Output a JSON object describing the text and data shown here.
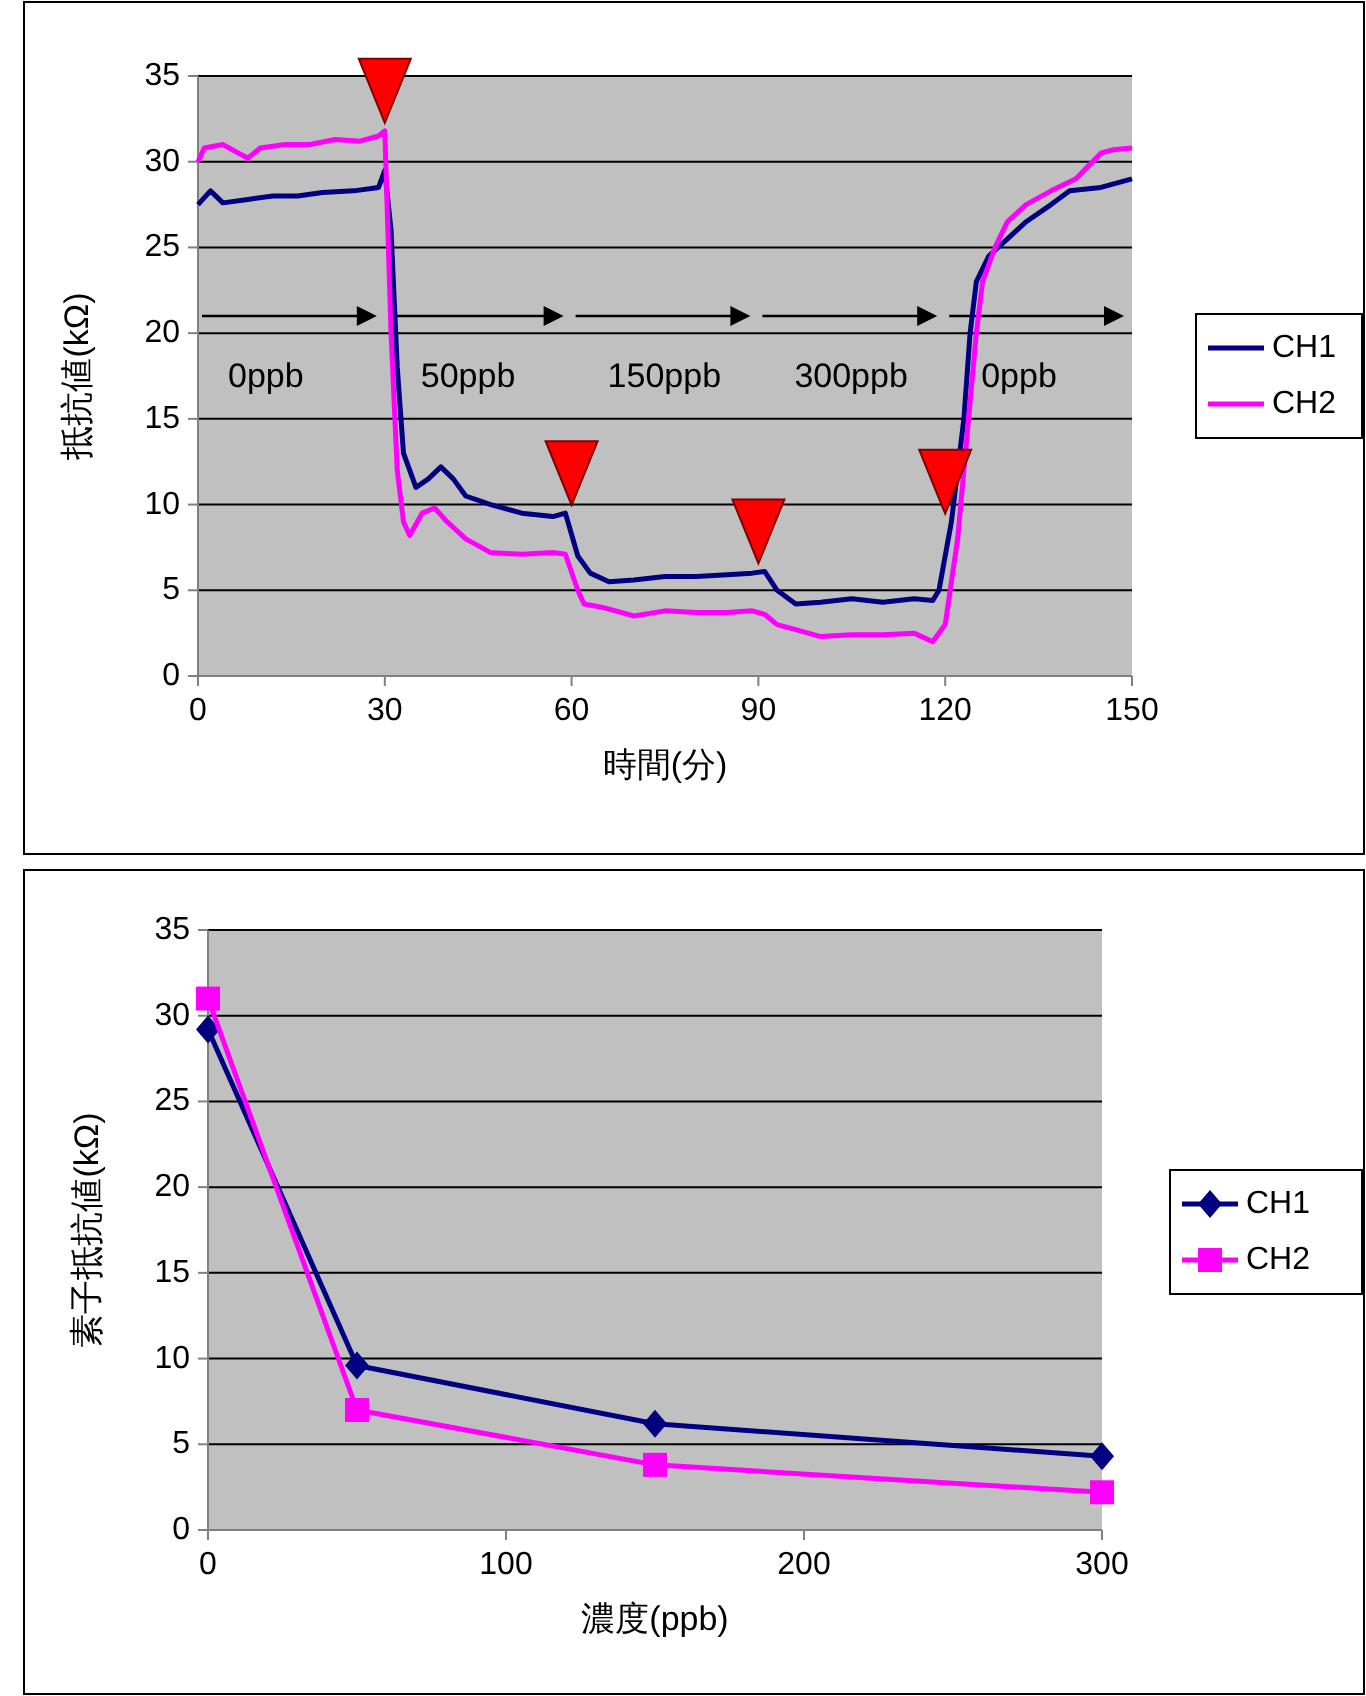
{
  "chart_data": [
    {
      "type": "line",
      "xlabel": "時間(分)",
      "ylabel": "抵抗値(kΩ)",
      "xlim": [
        0,
        150
      ],
      "xticks": [
        0,
        30,
        60,
        90,
        120,
        150
      ],
      "ylim": [
        0,
        35
      ],
      "yticks": [
        0,
        5,
        10,
        15,
        20,
        25,
        30,
        35
      ],
      "grid": "y",
      "legend": "right",
      "marker": "none",
      "annotations": [
        "0ppb",
        "50ppb",
        "150ppb",
        "300ppb",
        "0ppb"
      ],
      "series": [
        {
          "name": "CH1",
          "color": "#000080",
          "x": [
            0,
            2,
            4,
            8,
            12,
            16,
            20,
            25,
            29,
            30,
            31,
            32,
            33,
            35,
            37,
            39,
            41,
            43,
            47,
            52,
            57,
            59,
            61,
            63,
            66,
            70,
            75,
            80,
            85,
            89,
            91,
            93,
            96,
            100,
            105,
            110,
            115,
            118,
            119,
            121,
            123,
            124,
            125,
            127,
            130,
            133,
            137,
            140,
            145,
            150
          ],
          "values": [
            27.5,
            28.3,
            27.6,
            27.8,
            28,
            28,
            28.2,
            28.3,
            28.5,
            29.5,
            26,
            18,
            13,
            11,
            11.5,
            12.2,
            11.5,
            10.5,
            10,
            9.5,
            9.3,
            9.5,
            7,
            6,
            5.5,
            5.6,
            5.8,
            5.8,
            5.9,
            6,
            6.1,
            5,
            4.2,
            4.3,
            4.5,
            4.3,
            4.5,
            4.4,
            5,
            9,
            15,
            20,
            23,
            24.5,
            25.5,
            26.5,
            27.5,
            28.3,
            28.5,
            29
          ]
        },
        {
          "name": "CH2",
          "color": "#ff00ff",
          "x": [
            0,
            1,
            4,
            8,
            10,
            14,
            18,
            22,
            26,
            29,
            30,
            31,
            32,
            33,
            34,
            36,
            38,
            40,
            43,
            47,
            52,
            57,
            59,
            61,
            62,
            65,
            70,
            75,
            80,
            85,
            89,
            91,
            93,
            96,
            100,
            105,
            110,
            115,
            118,
            120,
            122,
            124,
            125,
            126,
            128,
            130,
            133,
            137,
            141,
            145,
            147,
            150
          ],
          "values": [
            30,
            30.8,
            31,
            30.2,
            30.8,
            31,
            31,
            31.3,
            31.2,
            31.5,
            31.8,
            20,
            12,
            9,
            8.2,
            9.5,
            9.8,
            9,
            8,
            7.2,
            7.1,
            7.2,
            7.1,
            5,
            4.2,
            4,
            3.5,
            3.8,
            3.7,
            3.7,
            3.8,
            3.6,
            3,
            2.7,
            2.3,
            2.4,
            2.4,
            2.5,
            2,
            3,
            8,
            16,
            20,
            23,
            25,
            26.5,
            27.5,
            28.3,
            29,
            30.5,
            30.7,
            30.8
          ]
        }
      ]
    },
    {
      "type": "line",
      "xlabel": "濃度(ppb)",
      "ylabel": "素子抵抗値(kΩ)",
      "xlim": [
        0,
        300
      ],
      "xticks": [
        0,
        100,
        200,
        300
      ],
      "ylim": [
        0,
        35
      ],
      "yticks": [
        0,
        5,
        10,
        15,
        20,
        25,
        30,
        35
      ],
      "grid": "y",
      "legend": "right",
      "series": [
        {
          "name": "CH1",
          "color": "#000080",
          "marker": "diamond",
          "x": [
            0,
            50,
            150,
            300
          ],
          "values": [
            29.2,
            9.6,
            6.2,
            4.3
          ]
        },
        {
          "name": "CH2",
          "color": "#ff00ff",
          "marker": "square",
          "x": [
            0,
            50,
            150,
            300
          ],
          "values": [
            31,
            7,
            3.8,
            2.2
          ]
        }
      ]
    }
  ]
}
